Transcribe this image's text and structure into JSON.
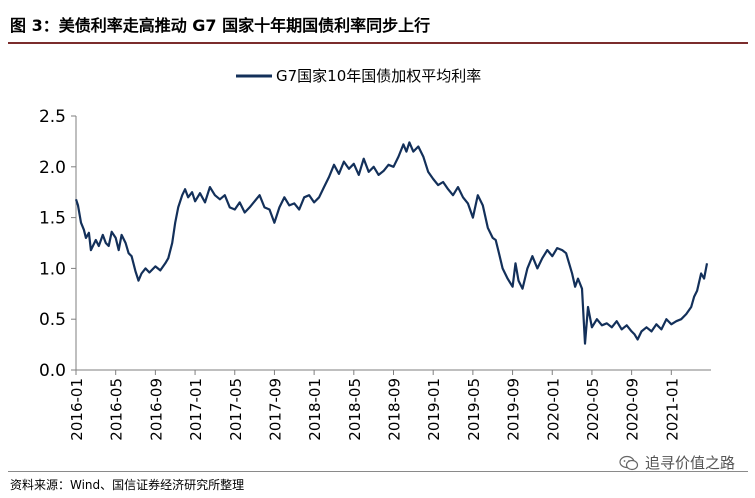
{
  "figure": {
    "title": "图 3：美债利率走高推动 G7 国家十年期国债利率同步上行",
    "source": "资料来源：Wind、国信证券经济研究所整理",
    "watermark": "追寻价值之路",
    "watermark_icon": "wechat-icon"
  },
  "colors": {
    "series": "#13305a",
    "title_rule": "#7b2c2c",
    "axis": "#7f7f7f"
  },
  "chart_data": {
    "type": "line",
    "title": "",
    "xlabel": "",
    "ylabel": "",
    "ylim": [
      0,
      2.5
    ],
    "y_ticks": [
      "0.0",
      "0.5",
      "1.0",
      "1.5",
      "2.0",
      "2.5"
    ],
    "y_tick_values": [
      0,
      0.5,
      1.0,
      1.5,
      2.0,
      2.5
    ],
    "x_range": [
      0,
      64
    ],
    "x_ticks": [
      "2016-01",
      "2016-05",
      "2016-09",
      "2017-01",
      "2017-05",
      "2017-09",
      "2018-01",
      "2018-05",
      "2018-09",
      "2019-01",
      "2019-05",
      "2019-09",
      "2020-01",
      "2020-05",
      "2020-09",
      "2021-01"
    ],
    "x_tick_values": [
      0,
      4,
      8,
      12,
      16,
      20,
      24,
      28,
      32,
      36,
      40,
      44,
      48,
      52,
      56,
      60
    ],
    "grid": false,
    "legend": "top-center",
    "series": [
      {
        "name": "G7国家10年国债加权平均利率",
        "x": [
          0,
          0.2,
          0.5,
          0.8,
          1.0,
          1.3,
          1.5,
          2.0,
          2.3,
          2.7,
          3.0,
          3.3,
          3.6,
          4.0,
          4.3,
          4.6,
          5.0,
          5.3,
          5.6,
          6.0,
          6.3,
          6.6,
          7.0,
          7.4,
          8.0,
          8.5,
          9.0,
          9.3,
          9.7,
          10.0,
          10.3,
          10.7,
          11.0,
          11.3,
          11.7,
          12.0,
          12.5,
          13.0,
          13.5,
          14.0,
          14.5,
          15.0,
          15.5,
          16.0,
          16.5,
          17.0,
          17.5,
          18.0,
          18.5,
          19.0,
          19.5,
          20.0,
          20.5,
          21.0,
          21.5,
          22.0,
          22.5,
          23.0,
          23.5,
          24.0,
          24.5,
          25.0,
          25.5,
          26.0,
          26.5,
          27.0,
          27.5,
          28.0,
          28.5,
          29.0,
          29.5,
          30.0,
          30.5,
          31.0,
          31.5,
          32.0,
          32.5,
          33.0,
          33.3,
          33.6,
          34.0,
          34.5,
          35.0,
          35.5,
          36.0,
          36.5,
          37.0,
          37.5,
          38.0,
          38.5,
          39.0,
          39.5,
          40.0,
          40.5,
          41.0,
          41.5,
          42.0,
          42.3,
          42.6,
          43.0,
          43.5,
          44.0,
          44.3,
          44.6,
          45.0,
          45.5,
          46.0,
          46.5,
          47.0,
          47.5,
          48.0,
          48.5,
          49.0,
          49.4,
          49.7,
          50.0,
          50.3,
          50.6,
          51.0,
          51.3,
          51.6,
          52.0,
          52.5,
          53.0,
          53.5,
          54.0,
          54.5,
          55.0,
          55.5,
          56.0,
          56.3,
          56.6,
          57.0,
          57.5,
          58.0,
          58.5,
          59.0,
          59.5,
          60.0,
          60.5,
          61.0,
          61.5,
          62.0,
          62.3,
          62.6,
          63.0,
          63.3,
          63.6
        ],
        "values": [
          1.68,
          1.62,
          1.45,
          1.38,
          1.3,
          1.35,
          1.18,
          1.28,
          1.22,
          1.33,
          1.25,
          1.22,
          1.36,
          1.3,
          1.18,
          1.33,
          1.25,
          1.15,
          1.12,
          0.97,
          0.88,
          0.95,
          1.0,
          0.96,
          1.02,
          0.98,
          1.05,
          1.1,
          1.25,
          1.45,
          1.6,
          1.72,
          1.78,
          1.7,
          1.75,
          1.66,
          1.74,
          1.65,
          1.8,
          1.72,
          1.68,
          1.72,
          1.6,
          1.58,
          1.65,
          1.55,
          1.6,
          1.66,
          1.72,
          1.6,
          1.58,
          1.45,
          1.6,
          1.7,
          1.62,
          1.64,
          1.58,
          1.7,
          1.72,
          1.65,
          1.7,
          1.8,
          1.9,
          2.02,
          1.93,
          2.05,
          1.98,
          2.03,
          1.92,
          2.08,
          1.95,
          2.0,
          1.92,
          1.96,
          2.02,
          2.0,
          2.1,
          2.22,
          2.15,
          2.24,
          2.15,
          2.2,
          2.1,
          1.95,
          1.88,
          1.82,
          1.85,
          1.78,
          1.72,
          1.8,
          1.7,
          1.64,
          1.5,
          1.72,
          1.62,
          1.4,
          1.3,
          1.28,
          1.16,
          1.0,
          0.9,
          0.82,
          1.05,
          0.88,
          0.8,
          1.0,
          1.12,
          1.0,
          1.1,
          1.18,
          1.12,
          1.2,
          1.18,
          1.15,
          1.05,
          0.95,
          0.82,
          0.9,
          0.8,
          0.26,
          0.62,
          0.42,
          0.5,
          0.44,
          0.46,
          0.42,
          0.48,
          0.4,
          0.44,
          0.38,
          0.35,
          0.3,
          0.38,
          0.42,
          0.38,
          0.45,
          0.4,
          0.5,
          0.45,
          0.48,
          0.5,
          0.55,
          0.62,
          0.72,
          0.78,
          0.95,
          0.9,
          1.05
        ]
      }
    ]
  }
}
